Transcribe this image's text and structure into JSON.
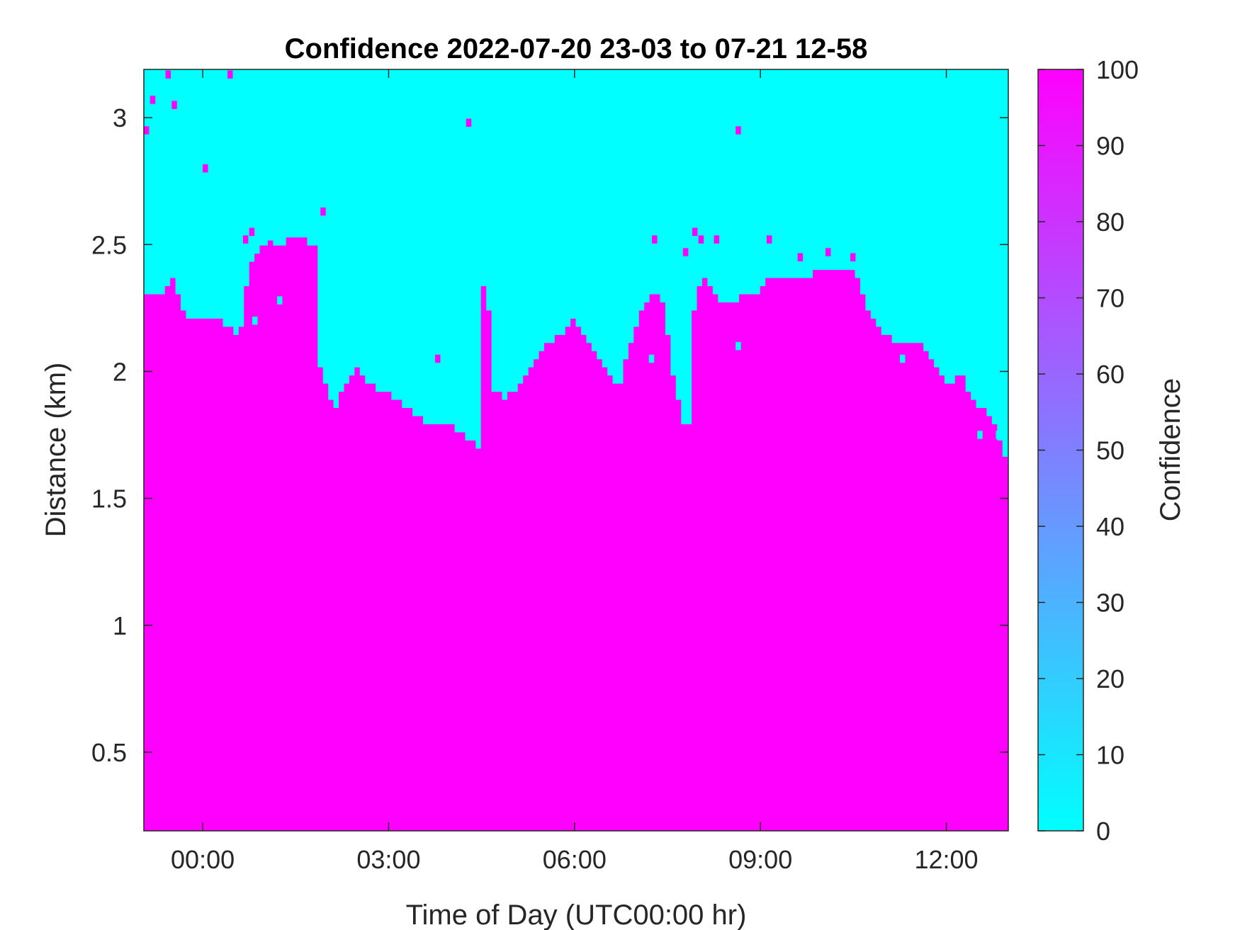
{
  "chart_data": {
    "type": "heatmap",
    "title": "Confidence 2022-07-20 23-03 to 07-21 12-58",
    "xlabel": "Time of Day (UTC00:00 hr)",
    "ylabel": "Distance (km)",
    "xlim_hours": [
      -0.95,
      13.0
    ],
    "ylim": [
      0.19,
      3.19
    ],
    "x_ticks": [
      {
        "hours": 0,
        "label": "00:00"
      },
      {
        "hours": 3,
        "label": "03:00"
      },
      {
        "hours": 6,
        "label": "06:00"
      },
      {
        "hours": 9,
        "label": "09:00"
      },
      {
        "hours": 12,
        "label": "12:00"
      }
    ],
    "y_ticks": [
      {
        "value": 0.5,
        "label": "0.5"
      },
      {
        "value": 1,
        "label": "1"
      },
      {
        "value": 1.5,
        "label": "1.5"
      },
      {
        "value": 2,
        "label": "2"
      },
      {
        "value": 2.5,
        "label": "2.5"
      },
      {
        "value": 3,
        "label": "3"
      }
    ],
    "colorbar": {
      "label": "Confidence",
      "range": [
        0,
        100
      ],
      "ticks": [
        {
          "value": 0,
          "label": "0"
        },
        {
          "value": 10,
          "label": "10"
        },
        {
          "value": 20,
          "label": "20"
        },
        {
          "value": 30,
          "label": "30"
        },
        {
          "value": 40,
          "label": "40"
        },
        {
          "value": 50,
          "label": "50"
        },
        {
          "value": 60,
          "label": "60"
        },
        {
          "value": 70,
          "label": "70"
        },
        {
          "value": 80,
          "label": "80"
        },
        {
          "value": 90,
          "label": "90"
        },
        {
          "value": 100,
          "label": "100"
        }
      ],
      "color_low": "#00ffff",
      "color_high": "#ff00ff"
    },
    "low_confidence_color": "#00ffff",
    "high_confidence_color": "#ff00ff",
    "boundary_description": "Confidence is 100 below the boundary height and 0 above it",
    "boundary": [
      [
        -0.95,
        2.29
      ],
      [
        -0.7,
        2.29
      ],
      [
        -0.5,
        2.37
      ],
      [
        -0.3,
        2.22
      ],
      [
        -0.1,
        2.2
      ],
      [
        0.1,
        2.22
      ],
      [
        0.3,
        2.2
      ],
      [
        0.5,
        2.15
      ],
      [
        0.6,
        2.12
      ],
      [
        0.75,
        2.4
      ],
      [
        0.9,
        2.48
      ],
      [
        1.1,
        2.49
      ],
      [
        1.3,
        2.5
      ],
      [
        1.45,
        2.53
      ],
      [
        1.6,
        2.53
      ],
      [
        1.75,
        2.48
      ],
      [
        1.85,
        2.48
      ],
      [
        1.9,
        1.98
      ],
      [
        2.0,
        1.93
      ],
      [
        2.1,
        1.85
      ],
      [
        2.2,
        1.88
      ],
      [
        2.35,
        1.98
      ],
      [
        2.5,
        2.02
      ],
      [
        2.65,
        1.97
      ],
      [
        2.85,
        1.93
      ],
      [
        3.05,
        1.9
      ],
      [
        3.25,
        1.86
      ],
      [
        3.45,
        1.82
      ],
      [
        3.65,
        1.8
      ],
      [
        3.85,
        1.78
      ],
      [
        4.05,
        1.78
      ],
      [
        4.25,
        1.75
      ],
      [
        4.42,
        1.7
      ],
      [
        4.48,
        1.7
      ],
      [
        4.52,
        2.35
      ],
      [
        4.6,
        2.3
      ],
      [
        4.7,
        1.93
      ],
      [
        4.85,
        1.9
      ],
      [
        5.05,
        1.92
      ],
      [
        5.2,
        1.98
      ],
      [
        5.35,
        2.05
      ],
      [
        5.5,
        2.1
      ],
      [
        5.65,
        2.13
      ],
      [
        5.85,
        2.15
      ],
      [
        6.0,
        2.2
      ],
      [
        6.15,
        2.15
      ],
      [
        6.3,
        2.08
      ],
      [
        6.5,
        2.0
      ],
      [
        6.7,
        1.92
      ],
      [
        6.9,
        2.1
      ],
      [
        7.1,
        2.25
      ],
      [
        7.3,
        2.3
      ],
      [
        7.45,
        2.28
      ],
      [
        7.55,
        2.05
      ],
      [
        7.65,
        1.9
      ],
      [
        7.75,
        1.8
      ],
      [
        7.85,
        1.8
      ],
      [
        7.95,
        2.32
      ],
      [
        8.1,
        2.38
      ],
      [
        8.3,
        2.3
      ],
      [
        8.5,
        2.25
      ],
      [
        8.7,
        2.3
      ],
      [
        8.9,
        2.3
      ],
      [
        9.05,
        2.35
      ],
      [
        9.25,
        2.38
      ],
      [
        9.45,
        2.37
      ],
      [
        9.7,
        2.37
      ],
      [
        9.9,
        2.39
      ],
      [
        10.1,
        2.4
      ],
      [
        10.3,
        2.41
      ],
      [
        10.5,
        2.4
      ],
      [
        10.65,
        2.3
      ],
      [
        10.8,
        2.2
      ],
      [
        11.0,
        2.15
      ],
      [
        11.2,
        2.12
      ],
      [
        11.4,
        2.12
      ],
      [
        11.6,
        2.1
      ],
      [
        11.75,
        2.05
      ],
      [
        11.9,
        2.0
      ],
      [
        12.05,
        1.95
      ],
      [
        12.25,
        1.98
      ],
      [
        12.45,
        1.88
      ],
      [
        12.6,
        1.85
      ],
      [
        12.75,
        1.82
      ],
      [
        12.9,
        1.68
      ],
      [
        13.0,
        1.63
      ]
    ],
    "isolated_high_cells": [
      [
        -0.95,
        2.95
      ],
      [
        -0.85,
        3.07
      ],
      [
        -0.6,
        3.17
      ],
      [
        -0.5,
        3.05
      ],
      [
        0.0,
        2.8
      ],
      [
        0.4,
        3.17
      ],
      [
        1.9,
        2.63
      ],
      [
        3.75,
        2.05
      ],
      [
        4.25,
        2.98
      ],
      [
        8.6,
        2.95
      ],
      [
        0.75,
        2.55
      ],
      [
        0.65,
        2.52
      ],
      [
        1.05,
        2.5
      ],
      [
        7.25,
        2.52
      ],
      [
        7.75,
        2.47
      ],
      [
        7.9,
        2.55
      ],
      [
        8.0,
        2.52
      ],
      [
        8.25,
        2.52
      ],
      [
        9.1,
        2.52
      ],
      [
        9.6,
        2.45
      ],
      [
        10.05,
        2.47
      ],
      [
        10.45,
        2.45
      ]
    ],
    "isolated_low_cells": [
      [
        0.5,
        2.35
      ],
      [
        0.8,
        2.2
      ],
      [
        1.2,
        2.28
      ],
      [
        7.2,
        2.05
      ],
      [
        7.6,
        2.15
      ],
      [
        7.8,
        2.0
      ],
      [
        8.6,
        2.1
      ],
      [
        11.25,
        2.05
      ],
      [
        12.5,
        1.75
      ],
      [
        12.8,
        1.75
      ]
    ]
  }
}
